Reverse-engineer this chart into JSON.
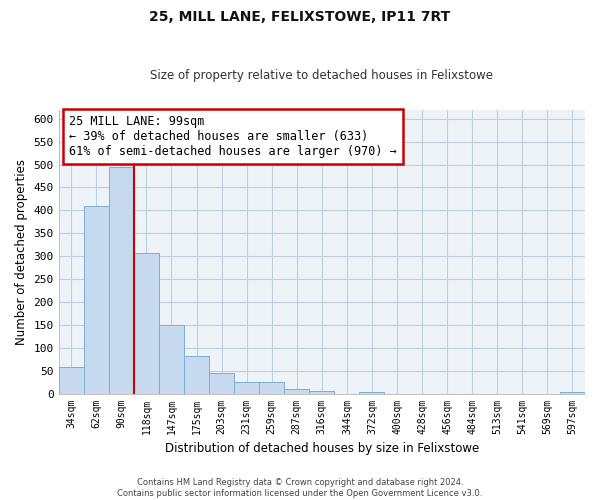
{
  "title": "25, MILL LANE, FELIXSTOWE, IP11 7RT",
  "subtitle": "Size of property relative to detached houses in Felixstowe",
  "xlabel": "Distribution of detached houses by size in Felixstowe",
  "ylabel": "Number of detached properties",
  "bar_color": "#c6d9ee",
  "bar_edge_color": "#7bafd4",
  "bin_labels": [
    "34sqm",
    "62sqm",
    "90sqm",
    "118sqm",
    "147sqm",
    "175sqm",
    "203sqm",
    "231sqm",
    "259sqm",
    "287sqm",
    "316sqm",
    "344sqm",
    "372sqm",
    "400sqm",
    "428sqm",
    "456sqm",
    "484sqm",
    "513sqm",
    "541sqm",
    "569sqm",
    "597sqm"
  ],
  "bar_heights": [
    57,
    410,
    495,
    307,
    150,
    82,
    44,
    26,
    26,
    10,
    6,
    0,
    3,
    0,
    0,
    0,
    0,
    0,
    0,
    0,
    4
  ],
  "ylim": [
    0,
    620
  ],
  "yticks": [
    0,
    50,
    100,
    150,
    200,
    250,
    300,
    350,
    400,
    450,
    500,
    550,
    600
  ],
  "vline_color": "#cc0000",
  "annotation_title": "25 MILL LANE: 99sqm",
  "annotation_line1": "← 39% of detached houses are smaller (633)",
  "annotation_line2": "61% of semi-detached houses are larger (970) →",
  "annotation_box_color": "#ffffff",
  "annotation_box_edge": "#cc0000",
  "footer1": "Contains HM Land Registry data © Crown copyright and database right 2024.",
  "footer2": "Contains public sector information licensed under the Open Government Licence v3.0.",
  "background_color": "#ffffff",
  "plot_bg_color": "#eef3f8",
  "grid_color": "#c0cfe0"
}
